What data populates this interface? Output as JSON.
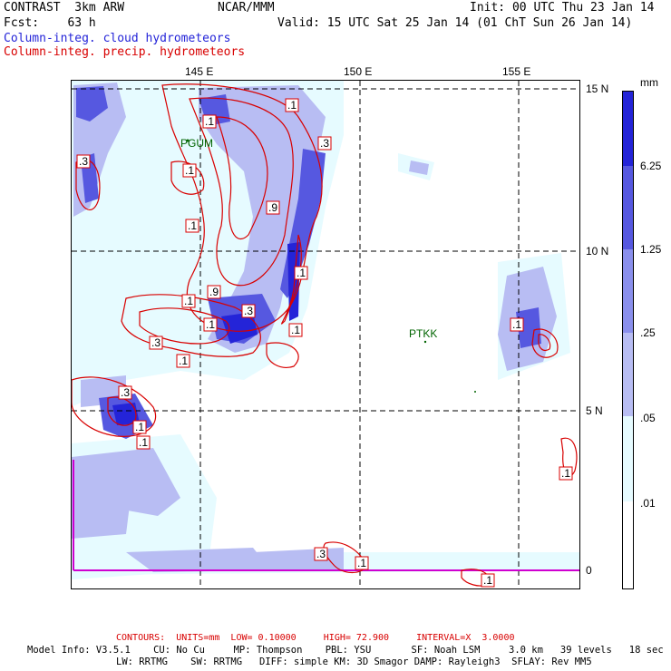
{
  "header": {
    "line1_left": "CONTRAST  3km ARW",
    "line1_center": "NCAR/MMM",
    "line1_right": "Init: 00 UTC Thu 23 Jan 14",
    "line2_left": "Fcst:    63 h",
    "line2_right": "Valid: 15 UTC Sat 25 Jan 14 (01 ChT Sun 26 Jan 14)",
    "field1": "Column-integ. cloud hydrometeors",
    "field2": "Column-integ. precip. hydrometeors"
  },
  "colors": {
    "cloud_text": "#2424d8",
    "precip_text": "#d80000",
    "shade_1": "#e6fbff",
    "shade_2": "#b8bdf3",
    "shade_3": "#8a8fec",
    "shade_4": "#5658e0",
    "shade_5": "#2424d8",
    "contour": "#d80000",
    "boundary": "#d000d0"
  },
  "map": {
    "lon_labels": [
      "145 E",
      "150 E",
      "155 E"
    ],
    "lat_labels": [
      "15 N",
      "10 N",
      "5 N",
      "0"
    ],
    "stations": [
      "PGUM",
      "PTKK"
    ],
    "contour_labels": [
      ".1",
      ".1",
      ".3",
      ".3",
      ".1",
      ".1",
      ".9",
      ".1",
      ".1",
      ".9",
      ".3",
      ".1",
      ".1",
      ".3",
      ".1",
      ".3",
      ".1",
      ".1",
      ".1",
      ".3",
      ".1",
      ".1",
      ".1"
    ]
  },
  "colorbar": {
    "unit": "mm",
    "labels": [
      "6.25",
      "1.25",
      ".25",
      ".05",
      ".01"
    ]
  },
  "footer": {
    "contours": "CONTOURS:  UNITS=mm  LOW= 0.10000     HIGH= 72.900     INTERVAL=X  3.0000",
    "model_line1": "Model Info: V3.5.1    CU: No Cu     MP: Thompson    PBL: YSU       SF: Noah LSM     3.0 km   39 levels   18 sec",
    "model_line2": "LW: RRTMG    SW: RRTMG   DIFF: simple KM: 3D Smagor DAMP: Rayleigh3  SFLAY: Rev MM5"
  }
}
